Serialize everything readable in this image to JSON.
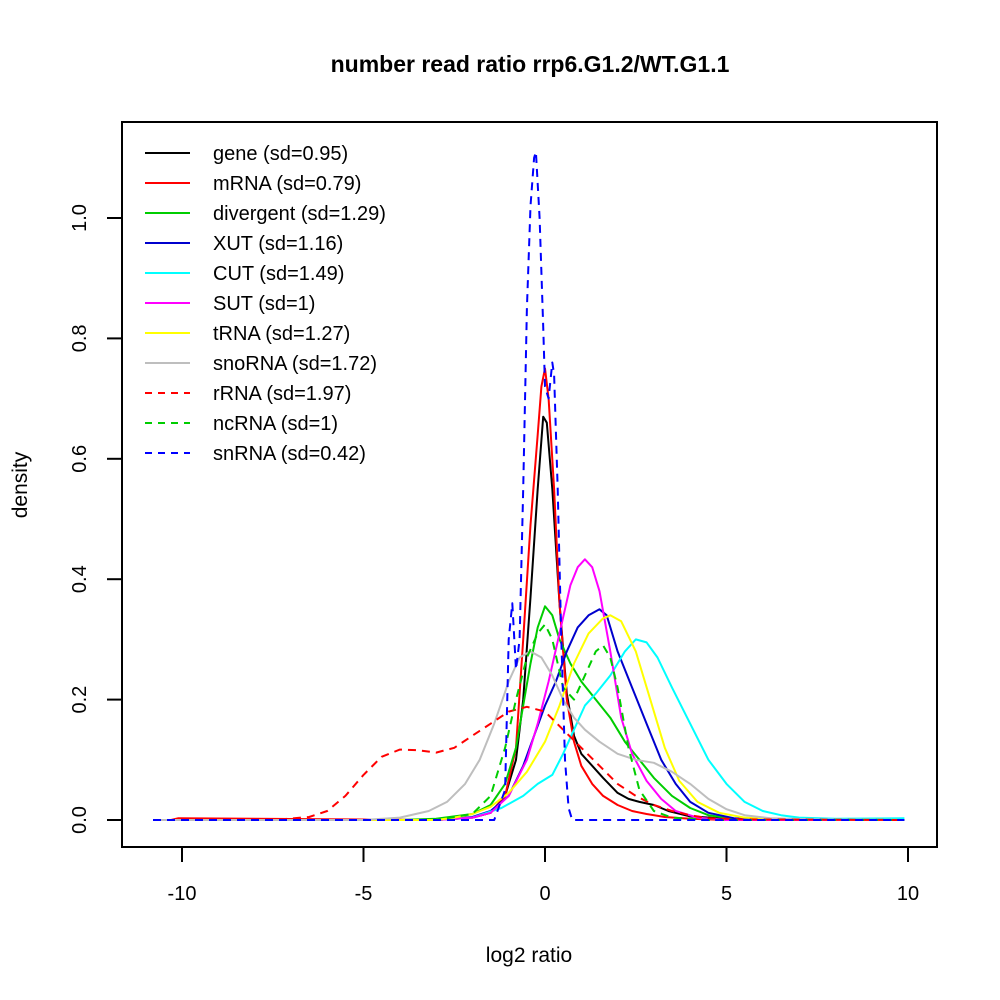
{
  "chart_data": {
    "type": "line",
    "title": "number read ratio rrp6.G1.2/WT.G1.1",
    "xlabel": "log2 ratio",
    "ylabel": "density",
    "xlim": [
      -11.3,
      10.8
    ],
    "ylim": [
      -0.045,
      1.16
    ],
    "xticks": [
      -10,
      -5,
      0,
      5,
      10
    ],
    "xtick_labels": [
      "-10",
      "-5",
      "0",
      "5",
      "10"
    ],
    "yticks": [
      0.0,
      0.2,
      0.4,
      0.6,
      0.8,
      1.0
    ],
    "ytick_labels": [
      "0.0",
      "0.2",
      "0.4",
      "0.6",
      "0.8",
      "1.0"
    ],
    "grid": false,
    "legend_position": "top-left",
    "series": [
      {
        "name": "gene",
        "label": "gene (sd=0.95)",
        "color": "#000000",
        "dash": "solid",
        "x": [
          -10.8,
          -3,
          -2,
          -1.5,
          -1.1,
          -0.8,
          -0.6,
          -0.4,
          -0.2,
          -0.05,
          0.05,
          0.2,
          0.4,
          0.6,
          0.8,
          1.0,
          1.3,
          1.6,
          2.0,
          2.3,
          2.6,
          3.0,
          3.4,
          4.0,
          5,
          6,
          9.9
        ],
        "y": [
          0,
          0,
          0.004,
          0.012,
          0.04,
          0.1,
          0.2,
          0.37,
          0.55,
          0.67,
          0.66,
          0.55,
          0.36,
          0.21,
          0.14,
          0.11,
          0.09,
          0.07,
          0.045,
          0.035,
          0.03,
          0.025,
          0.015,
          0.006,
          0.002,
          0,
          0
        ]
      },
      {
        "name": "mRNA",
        "label": "mRNA (sd=0.79)",
        "color": "#ff0000",
        "dash": "solid",
        "x": [
          -10.8,
          -10.3,
          -10.1,
          -3,
          -2,
          -1.5,
          -1.1,
          -0.8,
          -0.6,
          -0.4,
          -0.2,
          -0.1,
          0.0,
          0.1,
          0.25,
          0.4,
          0.6,
          0.8,
          1.0,
          1.3,
          1.6,
          2.0,
          2.4,
          2.8,
          3.3,
          4,
          5,
          9.9
        ],
        "y": [
          0,
          0,
          0.003,
          0,
          0.004,
          0.012,
          0.04,
          0.12,
          0.3,
          0.49,
          0.64,
          0.72,
          0.75,
          0.7,
          0.55,
          0.36,
          0.2,
          0.13,
          0.09,
          0.06,
          0.04,
          0.025,
          0.015,
          0.01,
          0.005,
          0.002,
          0,
          0
        ]
      },
      {
        "name": "divergent",
        "label": "divergent (sd=1.29)",
        "color": "#00cd00",
        "dash": "solid",
        "x": [
          -10.8,
          -4,
          -3,
          -2,
          -1.5,
          -1.1,
          -0.8,
          -0.6,
          -0.4,
          -0.2,
          0.0,
          0.2,
          0.4,
          0.7,
          1.0,
          1.4,
          1.8,
          2.2,
          2.6,
          3.0,
          3.5,
          4.0,
          4.5,
          5.2,
          6,
          9.9
        ],
        "y": [
          0,
          0,
          0.002,
          0.01,
          0.025,
          0.06,
          0.12,
          0.19,
          0.26,
          0.32,
          0.355,
          0.34,
          0.3,
          0.26,
          0.23,
          0.2,
          0.17,
          0.13,
          0.1,
          0.07,
          0.04,
          0.02,
          0.008,
          0.002,
          0,
          0
        ]
      },
      {
        "name": "XUT",
        "label": "XUT (sd=1.16)",
        "color": "#0000cd",
        "dash": "solid",
        "x": [
          -10.8,
          -3,
          -2,
          -1.5,
          -1.0,
          -0.6,
          -0.3,
          0.0,
          0.3,
          0.6,
          0.9,
          1.2,
          1.5,
          1.7,
          2.0,
          2.4,
          2.8,
          3.2,
          3.6,
          4.0,
          4.5,
          5.2,
          6,
          9.9
        ],
        "y": [
          0,
          0,
          0.005,
          0.015,
          0.04,
          0.09,
          0.14,
          0.19,
          0.23,
          0.28,
          0.32,
          0.34,
          0.35,
          0.34,
          0.28,
          0.22,
          0.16,
          0.1,
          0.06,
          0.03,
          0.012,
          0.003,
          0,
          0
        ]
      },
      {
        "name": "CUT",
        "label": "CUT (sd=1.49)",
        "color": "#00ffff",
        "dash": "solid",
        "x": [
          -10.8,
          -3,
          -2,
          -1.2,
          -0.6,
          -0.2,
          0.2,
          0.5,
          0.8,
          1.1,
          1.4,
          1.8,
          2.2,
          2.5,
          2.8,
          3.1,
          3.5,
          4.0,
          4.5,
          5.0,
          5.5,
          6.0,
          6.5,
          7.0,
          8,
          9.9
        ],
        "y": [
          0,
          0,
          0.004,
          0.02,
          0.04,
          0.06,
          0.075,
          0.11,
          0.15,
          0.19,
          0.21,
          0.24,
          0.28,
          0.3,
          0.295,
          0.27,
          0.22,
          0.16,
          0.1,
          0.06,
          0.03,
          0.015,
          0.008,
          0.004,
          0.002,
          0.003
        ]
      },
      {
        "name": "SUT",
        "label": "SUT (sd=1)",
        "color": "#ff00ff",
        "dash": "solid",
        "x": [
          -10.8,
          -3,
          -2,
          -1.5,
          -1.0,
          -0.5,
          -0.2,
          0.1,
          0.4,
          0.7,
          0.9,
          1.1,
          1.3,
          1.5,
          1.8,
          2.1,
          2.4,
          2.8,
          3.2,
          3.6,
          4.2,
          5,
          9.9
        ],
        "y": [
          0,
          0,
          0.004,
          0.012,
          0.04,
          0.1,
          0.16,
          0.23,
          0.31,
          0.39,
          0.42,
          0.433,
          0.42,
          0.38,
          0.28,
          0.17,
          0.11,
          0.065,
          0.035,
          0.015,
          0.004,
          0,
          0
        ]
      },
      {
        "name": "tRNA",
        "label": "tRNA (sd=1.27)",
        "color": "#ffff00",
        "dash": "solid",
        "x": [
          -10.8,
          -3,
          -2.5,
          -2,
          -1.5,
          -1.0,
          -0.5,
          0.0,
          0.4,
          0.8,
          1.2,
          1.6,
          1.8,
          2.1,
          2.5,
          2.9,
          3.3,
          3.7,
          4.2,
          4.8,
          5.5,
          6.5,
          9.9
        ],
        "y": [
          0,
          0,
          0.004,
          0.01,
          0.022,
          0.045,
          0.08,
          0.13,
          0.19,
          0.26,
          0.31,
          0.335,
          0.34,
          0.33,
          0.28,
          0.2,
          0.12,
          0.065,
          0.03,
          0.012,
          0.004,
          0.001,
          0
        ]
      },
      {
        "name": "snoRNA",
        "label": "snoRNA (sd=1.72)",
        "color": "#bebebe",
        "dash": "solid",
        "x": [
          -10.8,
          -5,
          -4,
          -3.2,
          -2.7,
          -2.2,
          -1.8,
          -1.4,
          -1.0,
          -0.7,
          -0.4,
          -0.1,
          0.2,
          0.5,
          0.8,
          1.1,
          1.5,
          2.0,
          2.5,
          3.0,
          3.5,
          4.0,
          4.5,
          5.0,
          5.5,
          6.2,
          7.5,
          9.9
        ],
        "y": [
          0,
          0,
          0.004,
          0.015,
          0.03,
          0.06,
          0.1,
          0.16,
          0.23,
          0.27,
          0.28,
          0.27,
          0.24,
          0.2,
          0.17,
          0.15,
          0.13,
          0.11,
          0.1,
          0.095,
          0.08,
          0.06,
          0.035,
          0.018,
          0.008,
          0.003,
          0.001,
          0
        ]
      },
      {
        "name": "rRNA",
        "label": "rRNA (sd=1.97)",
        "color": "#ff0000",
        "dash": "dashed",
        "x": [
          -10.8,
          -7.5,
          -6.5,
          -6.0,
          -5.5,
          -5.0,
          -4.5,
          -4.0,
          -3.5,
          -3.0,
          -2.5,
          -2.0,
          -1.5,
          -1.0,
          -0.5,
          0.0,
          0.5,
          1.0,
          1.5,
          2.0,
          2.5,
          3.0,
          3.5,
          4.0,
          4.5,
          5.5,
          9.9
        ],
        "y": [
          0,
          0,
          0.005,
          0.015,
          0.04,
          0.075,
          0.105,
          0.117,
          0.116,
          0.112,
          0.12,
          0.14,
          0.16,
          0.18,
          0.188,
          0.18,
          0.15,
          0.12,
          0.09,
          0.06,
          0.04,
          0.025,
          0.015,
          0.008,
          0.003,
          0.001,
          0
        ]
      },
      {
        "name": "ncRNA",
        "label": "ncRNA (sd=1)",
        "color": "#00cd00",
        "dash": "dashed",
        "x": [
          -10.8,
          -3,
          -2,
          -1.5,
          -1.1,
          -0.8,
          -0.5,
          -0.2,
          0.0,
          0.2,
          0.5,
          0.8,
          1.1,
          1.4,
          1.6,
          1.8,
          2.0,
          2.3,
          2.6,
          3.0,
          3.5,
          4.5,
          9.9
        ],
        "y": [
          0,
          0,
          0.01,
          0.04,
          0.12,
          0.2,
          0.27,
          0.31,
          0.325,
          0.3,
          0.22,
          0.2,
          0.24,
          0.28,
          0.29,
          0.27,
          0.22,
          0.12,
          0.05,
          0.015,
          0.004,
          0,
          0
        ]
      },
      {
        "name": "snRNA",
        "label": "snRNA (sd=0.42)",
        "color": "#0000ff",
        "dash": "dashed",
        "x": [
          -10.8,
          -1.4,
          -1.1,
          -1.0,
          -0.9,
          -0.8,
          -0.7,
          -0.6,
          -0.5,
          -0.4,
          -0.3,
          -0.25,
          -0.15,
          -0.05,
          0.0,
          0.1,
          0.2,
          0.25,
          0.35,
          0.45,
          0.55,
          0.65,
          0.75,
          9.9
        ],
        "y": [
          0,
          0,
          0.05,
          0.3,
          0.36,
          0.25,
          0.3,
          0.55,
          0.85,
          1.02,
          1.1,
          1.11,
          1.0,
          0.82,
          0.72,
          0.7,
          0.76,
          0.74,
          0.55,
          0.3,
          0.1,
          0.02,
          0,
          0
        ]
      }
    ]
  }
}
